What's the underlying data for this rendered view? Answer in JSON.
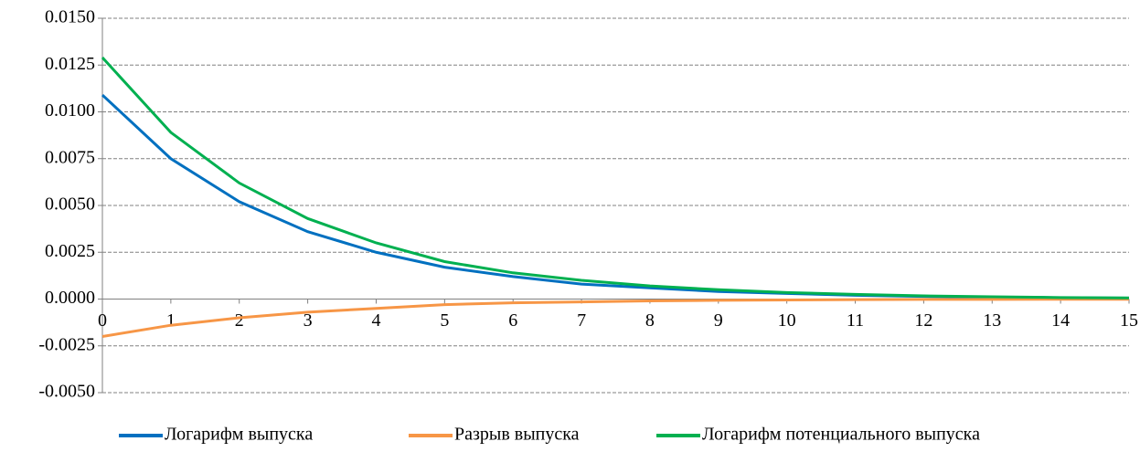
{
  "chart_data": {
    "type": "line",
    "x": [
      0,
      1,
      2,
      3,
      4,
      5,
      6,
      7,
      8,
      9,
      10,
      11,
      12,
      13,
      14,
      15
    ],
    "xlim": [
      0,
      15
    ],
    "xticks": [
      0,
      1,
      2,
      3,
      4,
      5,
      6,
      7,
      8,
      9,
      10,
      11,
      12,
      13,
      14,
      15
    ],
    "ylim": [
      -0.005,
      0.015
    ],
    "yticks": [
      {
        "value": -0.005,
        "label": "-0.0050"
      },
      {
        "value": -0.0025,
        "label": "-0.0025"
      },
      {
        "value": 0,
        "label": "0.0000"
      },
      {
        "value": 0.0025,
        "label": "0.0025"
      },
      {
        "value": 0.005,
        "label": "0.0050"
      },
      {
        "value": 0.0075,
        "label": "0.0075"
      },
      {
        "value": 0.01,
        "label": "0.0100"
      },
      {
        "value": 0.0125,
        "label": "0.0125"
      },
      {
        "value": 0.015,
        "label": "0.0150"
      }
    ],
    "grid": true,
    "legend": "bottom",
    "series": [
      {
        "name": "Логарифм выпуска",
        "color": "#0070c0",
        "values": [
          0.0109,
          0.0075,
          0.0052,
          0.0036,
          0.0025,
          0.0017,
          0.0012,
          0.0008,
          0.0006,
          0.0004,
          0.0003,
          0.0002,
          0.00014,
          0.0001,
          7e-05,
          5e-05
        ]
      },
      {
        "name": "Разрыв выпуска",
        "color": "#f79646",
        "values": [
          -0.002,
          -0.0014,
          -0.001,
          -0.0007,
          -0.0005,
          -0.0003,
          -0.0002,
          -0.00015,
          -0.0001,
          -7e-05,
          -5e-05,
          -3e-05,
          -2e-05,
          -2e-05,
          -1e-05,
          -1e-05
        ]
      },
      {
        "name": "Логарифм потенциального выпуска",
        "color": "#00b050",
        "values": [
          0.0129,
          0.0089,
          0.0062,
          0.0043,
          0.003,
          0.002,
          0.0014,
          0.001,
          0.0007,
          0.0005,
          0.00035,
          0.00025,
          0.00017,
          0.00012,
          8e-05,
          6e-05
        ]
      }
    ]
  }
}
